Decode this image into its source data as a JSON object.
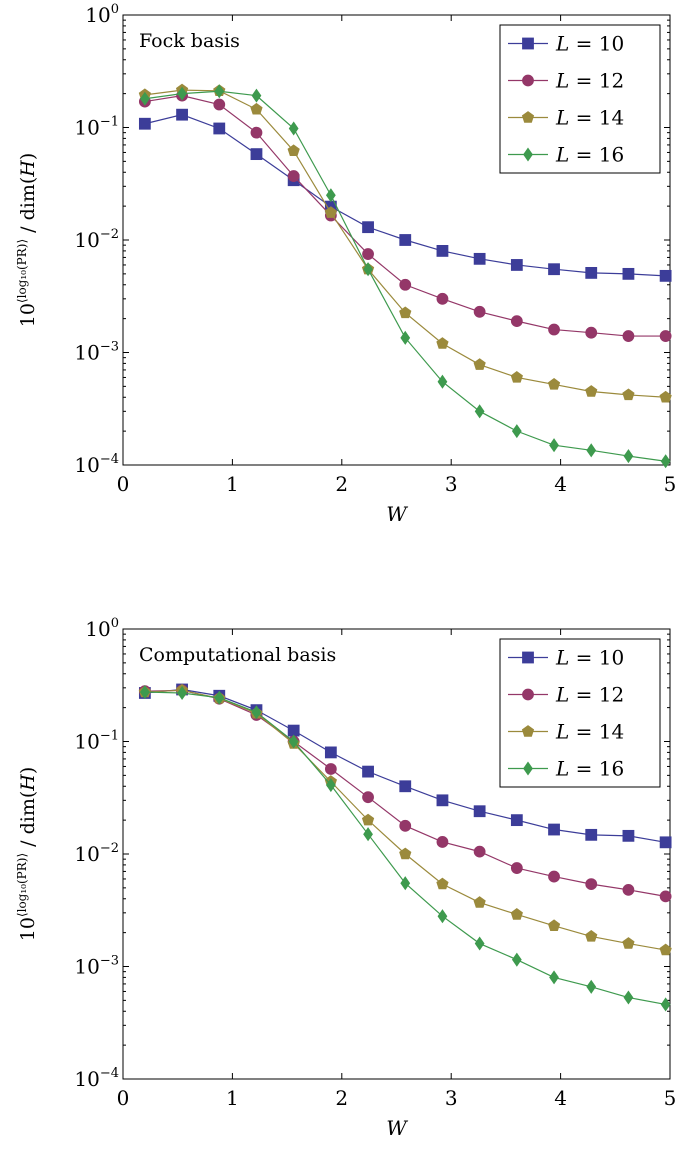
{
  "chart_data": [
    {
      "type": "line",
      "annotation": "Fock basis",
      "xlabel": "W",
      "ylabel_base": "10",
      "ylabel_exp": "⟨log₁₀(PR)⟩",
      "ylabel_tail": " / dim(",
      "ylabel_var": "H",
      "ylabel_close": ")",
      "xlim": [
        0,
        5
      ],
      "ylim": [
        0.0001,
        1
      ],
      "yscale": "log",
      "xticks": [
        "0",
        "1",
        "2",
        "3",
        "4",
        "5"
      ],
      "yticks": [
        {
          "base": "10",
          "exp": "0"
        },
        {
          "base": "10",
          "exp": "−1"
        },
        {
          "base": "10",
          "exp": "−2"
        },
        {
          "base": "10",
          "exp": "−3"
        },
        {
          "base": "10",
          "exp": "−4"
        }
      ],
      "legend_position": "top-right",
      "x": [
        0.2,
        0.54,
        0.88,
        1.22,
        1.56,
        1.9,
        2.24,
        2.58,
        2.92,
        3.26,
        3.6,
        3.94,
        4.28,
        4.62,
        4.96
      ],
      "series": [
        {
          "name": "L = 10",
          "label_var": "L",
          "label_eq": " = 10",
          "color": "#3c3d99",
          "marker": "square",
          "values": [
            0.108,
            0.13,
            0.098,
            0.058,
            0.034,
            0.0198,
            0.013,
            0.01,
            0.008,
            0.0068,
            0.006,
            0.0055,
            0.0051,
            0.005,
            0.0048
          ]
        },
        {
          "name": "L = 12",
          "label_var": "L",
          "label_eq": " = 12",
          "color": "#943768",
          "marker": "circle",
          "values": [
            0.17,
            0.192,
            0.16,
            0.09,
            0.037,
            0.0165,
            0.0075,
            0.004,
            0.003,
            0.0023,
            0.0019,
            0.0016,
            0.0015,
            0.0014,
            0.0014
          ]
        },
        {
          "name": "L = 14",
          "label_var": "L",
          "label_eq": " = 14",
          "color": "#9b8a3c",
          "marker": "pentagon",
          "values": [
            0.195,
            0.215,
            0.212,
            0.145,
            0.062,
            0.0175,
            0.0055,
            0.00225,
            0.0012,
            0.00078,
            0.0006,
            0.00052,
            0.00045,
            0.00042,
            0.0004
          ]
        },
        {
          "name": "L = 16",
          "label_var": "L",
          "label_eq": " = 16",
          "color": "#3e9a4e",
          "marker": "diamond",
          "values": [
            0.18,
            0.2,
            0.21,
            0.192,
            0.098,
            0.025,
            0.0055,
            0.00135,
            0.00055,
            0.0003,
            0.0002,
            0.00015,
            0.000135,
            0.00012,
            0.000108
          ]
        }
      ]
    },
    {
      "type": "line",
      "annotation": "Computational basis",
      "xlabel": "W",
      "ylabel_base": "10",
      "ylabel_exp": "⟨log₁₀(PR)⟩",
      "ylabel_tail": " / dim(",
      "ylabel_var": "H",
      "ylabel_close": ")",
      "xlim": [
        0,
        5
      ],
      "ylim": [
        0.0001,
        1
      ],
      "yscale": "log",
      "xticks": [
        "0",
        "1",
        "2",
        "3",
        "4",
        "5"
      ],
      "yticks": [
        {
          "base": "10",
          "exp": "0"
        },
        {
          "base": "10",
          "exp": "−1"
        },
        {
          "base": "10",
          "exp": "−2"
        },
        {
          "base": "10",
          "exp": "−3"
        },
        {
          "base": "10",
          "exp": "−4"
        }
      ],
      "legend_position": "top-right",
      "x": [
        0.2,
        0.54,
        0.88,
        1.22,
        1.56,
        1.9,
        2.24,
        2.58,
        2.92,
        3.26,
        3.6,
        3.94,
        4.28,
        4.62,
        4.96
      ],
      "series": [
        {
          "name": "L = 10",
          "label_var": "L",
          "label_eq": " = 10",
          "color": "#3c3d99",
          "marker": "square",
          "values": [
            0.27,
            0.29,
            0.255,
            0.19,
            0.125,
            0.08,
            0.054,
            0.04,
            0.03,
            0.024,
            0.02,
            0.0165,
            0.0148,
            0.0145,
            0.0127
          ]
        },
        {
          "name": "L = 12",
          "label_var": "L",
          "label_eq": " = 12",
          "color": "#943768",
          "marker": "circle",
          "values": [
            0.28,
            0.285,
            0.24,
            0.172,
            0.1,
            0.057,
            0.032,
            0.0178,
            0.0128,
            0.0105,
            0.0075,
            0.0063,
            0.0054,
            0.0048,
            0.0042
          ]
        },
        {
          "name": "L = 14",
          "label_var": "L",
          "label_eq": " = 14",
          "color": "#9b8a3c",
          "marker": "pentagon",
          "values": [
            0.275,
            0.285,
            0.242,
            0.178,
            0.096,
            0.044,
            0.02,
            0.01,
            0.0054,
            0.0037,
            0.0029,
            0.0023,
            0.00185,
            0.0016,
            0.0014
          ]
        },
        {
          "name": "L = 16",
          "label_var": "L",
          "label_eq": " = 16",
          "color": "#3e9a4e",
          "marker": "diamond",
          "values": [
            0.275,
            0.27,
            0.245,
            0.182,
            0.1,
            0.041,
            0.015,
            0.0055,
            0.0028,
            0.0016,
            0.00115,
            0.0008,
            0.00066,
            0.00053,
            0.00046
          ]
        }
      ]
    }
  ]
}
